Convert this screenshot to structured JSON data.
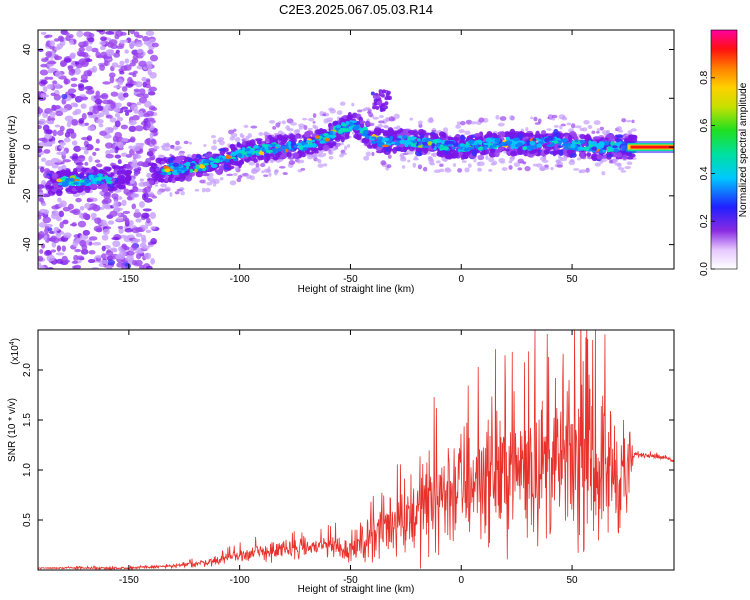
{
  "figure_title": "C2E3.2025.067.05.03.R14",
  "chart_data": [
    {
      "type": "heatmap",
      "xlabel": "Height of straight line (km)",
      "ylabel": "Frequency (Hz)",
      "xlim": [
        -191,
        96
      ],
      "ylim": [
        -50,
        48
      ],
      "xticks": [
        -150,
        -100,
        -50,
        0,
        50
      ],
      "yticks": [
        -40,
        -20,
        0,
        20,
        40
      ],
      "ridge": {
        "description_points_x": [
          -190,
          -175,
          -160,
          -150,
          -140,
          -130,
          -120,
          -110,
          -100,
          -90,
          -80,
          -70,
          -60,
          -55,
          -50,
          -45,
          -40,
          -35,
          -30,
          -20,
          -10,
          0,
          10,
          20,
          30,
          40,
          50,
          60,
          70,
          75,
          85,
          96
        ],
        "description_points_y": [
          -15,
          -14,
          -13,
          -12,
          -10,
          -9,
          -8,
          -6,
          -3,
          -1,
          0,
          1,
          4,
          7,
          9,
          8,
          3,
          2,
          3,
          2,
          1,
          0,
          1,
          2,
          1,
          2,
          1,
          0,
          0,
          0,
          0,
          0
        ]
      },
      "colorbar": {
        "label": "Normalized spectral amplitude",
        "ticks": [
          "0.0",
          "0.2",
          "0.4",
          "0.6",
          "0.8"
        ],
        "range": [
          0,
          1
        ]
      }
    },
    {
      "type": "line",
      "xlabel": "Height of straight line (km)",
      "ylabel": "SNR (10 * v/v)",
      "scale_label": "(x10",
      "scale_exponent": "4",
      "scale_close": ")",
      "xlim": [
        -191,
        96
      ],
      "ylim": [
        0,
        2.4
      ],
      "xticks": [
        -150,
        -100,
        -50,
        0,
        50
      ],
      "yticks": [
        "0.5",
        "1.0",
        "1.5",
        "2.0"
      ],
      "series": [
        {
          "color": "#e8312a",
          "envelope_x": [
            -191,
            -150,
            -130,
            -120,
            -110,
            -100,
            -90,
            -80,
            -70,
            -60,
            -50,
            -40,
            -30,
            -20,
            -10,
            0,
            10,
            20,
            30,
            40,
            50,
            55,
            60,
            70,
            75,
            78,
            85,
            96
          ],
          "envelope_mean": [
            0.02,
            0.02,
            0.04,
            0.06,
            0.1,
            0.15,
            0.18,
            0.2,
            0.22,
            0.25,
            0.2,
            0.35,
            0.5,
            0.6,
            0.75,
            0.85,
            0.95,
            1.0,
            1.05,
            1.05,
            1.1,
            1.1,
            1.05,
            1.0,
            0.95,
            1.15,
            1.15,
            1.1
          ],
          "envelope_amp": [
            0.01,
            0.02,
            0.03,
            0.05,
            0.07,
            0.1,
            0.14,
            0.16,
            0.14,
            0.18,
            0.2,
            0.35,
            0.55,
            0.7,
            0.85,
            0.9,
            0.95,
            1.0,
            1.05,
            1.05,
            1.1,
            1.25,
            1.1,
            1.0,
            0.8,
            0.04,
            0.04,
            0.03
          ]
        }
      ]
    }
  ]
}
